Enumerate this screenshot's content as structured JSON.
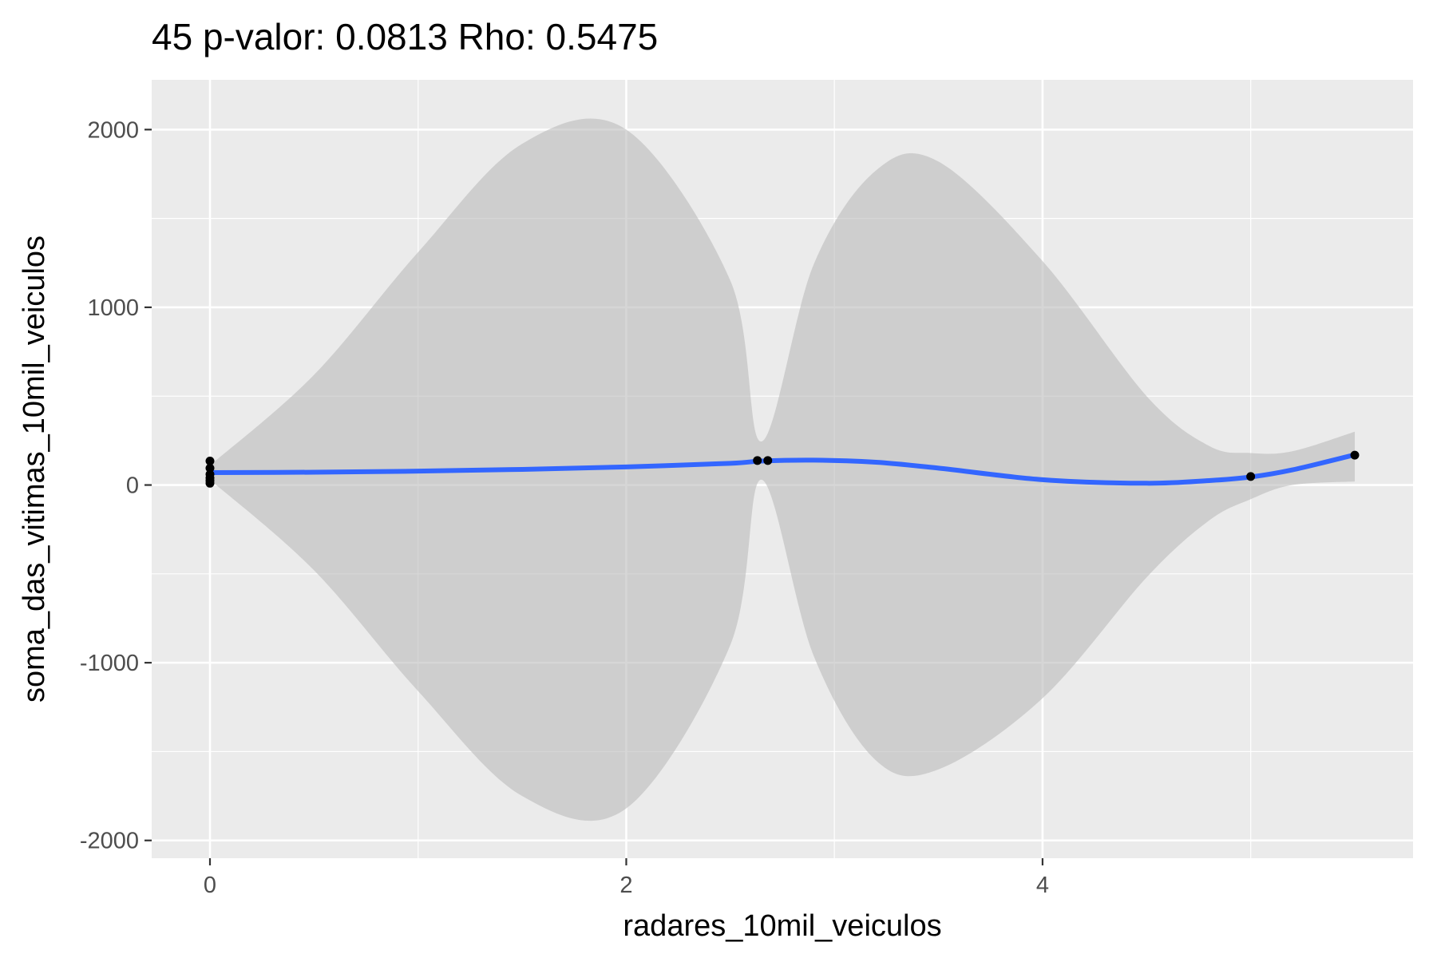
{
  "chart_data": {
    "type": "scatter",
    "title": "45 p-valor: 0.0813 Rho: 0.5475",
    "xlabel": "radares_10mil_veiculos",
    "ylabel": "soma_das_vitimas_10mil_veiculos",
    "xlim": [
      -0.28,
      5.78
    ],
    "ylim": [
      -2100,
      2280
    ],
    "x_ticks": [
      0,
      2,
      4
    ],
    "x_tick_labels": [
      "0",
      "2",
      "4"
    ],
    "y_ticks": [
      -2000,
      -1000,
      0,
      1000,
      2000
    ],
    "y_tick_labels": [
      "-2000",
      "-1000",
      "0",
      "1000",
      "2000"
    ],
    "grid": true,
    "colors": {
      "panel": "#ebebeb",
      "grid": "#ffffff",
      "ribbon": "#bdbdbd",
      "smooth": "#3366ff",
      "points": "#000000"
    },
    "points": [
      {
        "x": 0,
        "y": 135
      },
      {
        "x": 0,
        "y": 95
      },
      {
        "x": 0,
        "y": 60
      },
      {
        "x": 0,
        "y": 40
      },
      {
        "x": 0,
        "y": 25
      },
      {
        "x": 0,
        "y": 10
      },
      {
        "x": 2.63,
        "y": 138
      },
      {
        "x": 2.68,
        "y": 138
      },
      {
        "x": 5.0,
        "y": 48
      },
      {
        "x": 5.5,
        "y": 168
      }
    ],
    "smooth": {
      "x": [
        0,
        0.5,
        1.0,
        1.5,
        2.0,
        2.5,
        2.65,
        2.9,
        3.2,
        3.5,
        4.0,
        4.5,
        4.8,
        5.0,
        5.2,
        5.5
      ],
      "y": [
        70,
        72,
        78,
        88,
        102,
        122,
        135,
        140,
        128,
        95,
        30,
        10,
        25,
        45,
        85,
        170
      ],
      "ymin": [
        30,
        -480,
        -1160,
        -1750,
        -1820,
        -900,
        30,
        -960,
        -1550,
        -1600,
        -1200,
        -520,
        -200,
        -80,
        0,
        20
      ],
      "ymax": [
        110,
        620,
        1310,
        1920,
        2000,
        1150,
        245,
        1240,
        1770,
        1820,
        1260,
        500,
        220,
        180,
        190,
        300
      ]
    }
  }
}
